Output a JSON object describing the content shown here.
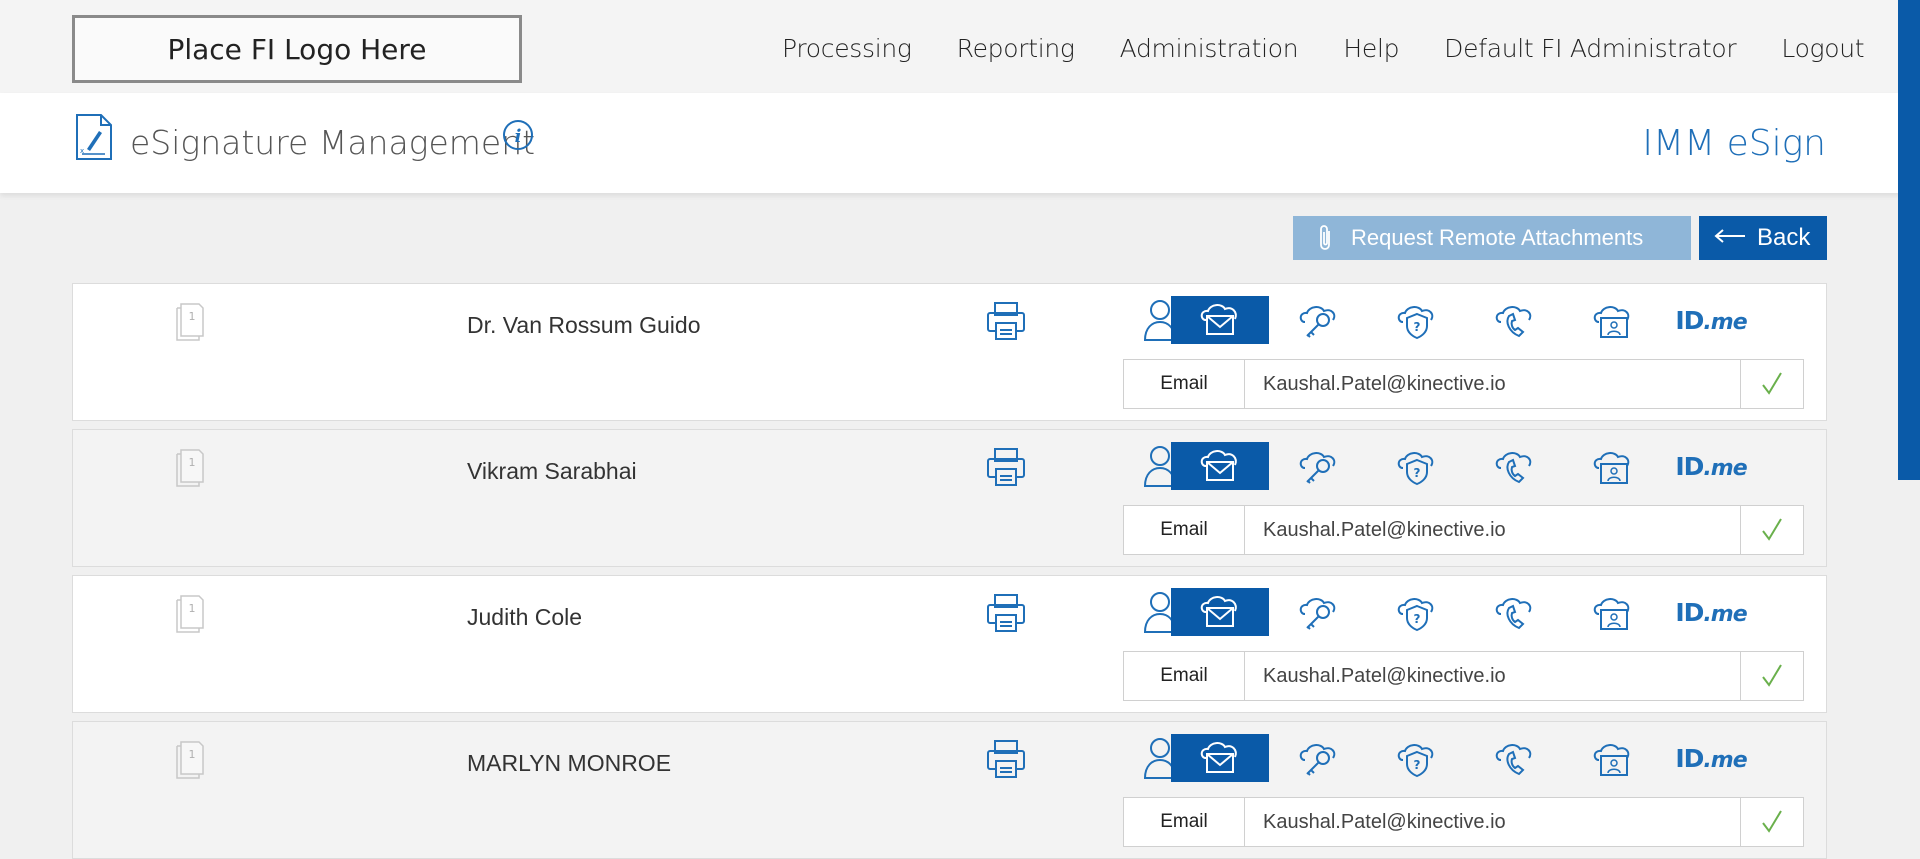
{
  "header": {
    "logo_text": "Place FI Logo Here",
    "nav": [
      "Processing",
      "Reporting",
      "Administration",
      "Help",
      "Default FI Administrator",
      "Logout"
    ]
  },
  "title_bar": {
    "title": "eSignature Management",
    "brand": "IMM eSign"
  },
  "actions": {
    "request_label": "Request Remote Attachments",
    "back_label": "Back"
  },
  "signers": [
    {
      "name": "Dr. Van Rossum Guido",
      "method_label": "Email",
      "email": "Kaushal.Patel@kinective.io",
      "page_count": "1"
    },
    {
      "name": "Vikram Sarabhai",
      "method_label": "Email",
      "email": "Kaushal.Patel@kinective.io",
      "page_count": "1"
    },
    {
      "name": "Judith Cole",
      "method_label": "Email",
      "email": "Kaushal.Patel@kinective.io",
      "page_count": "1"
    },
    {
      "name": "MARLYN MONROE",
      "method_label": "Email",
      "email": "Kaushal.Patel@kinective.io",
      "page_count": "1"
    }
  ],
  "auth_methods": [
    "person-icon",
    "email-cloud-icon",
    "key-icon",
    "security-question-icon",
    "phone-icon",
    "id-card-icon",
    "idme-icon"
  ],
  "idme": {
    "id": "ID",
    "me": ".me"
  },
  "colors": {
    "brand_blue": "#0a5aa8",
    "check_green": "#6ab04c"
  }
}
